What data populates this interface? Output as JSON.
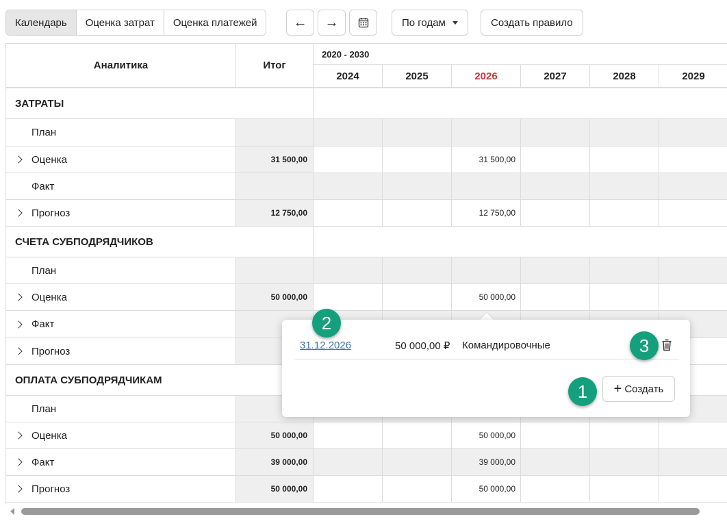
{
  "toolbar": {
    "tabs": [
      "Календарь",
      "Оценка затрат",
      "Оценка платежей"
    ],
    "nav_prev_icon": "←",
    "nav_next_icon": "→",
    "calendar_icon": "calendar-icon",
    "period_select": "По годам",
    "create_rule": "Создать правило"
  },
  "grid": {
    "col_analytics": "Аналитика",
    "col_total": "Итог",
    "period_range": "2020 - 2030",
    "years": [
      "2024",
      "2025",
      "2026",
      "2027",
      "2028",
      "2029"
    ],
    "current_year": "2026",
    "rows": [
      {
        "type": "section",
        "label": "ЗАТРАТЫ"
      },
      {
        "type": "row",
        "label": "План",
        "gray": true
      },
      {
        "type": "row",
        "label": "Оценка",
        "expandable": true,
        "total": "31 500,00",
        "y2026": "31 500,00"
      },
      {
        "type": "row",
        "label": "Факт",
        "gray": true
      },
      {
        "type": "row",
        "label": "Прогноз",
        "expandable": true,
        "total": "12 750,00",
        "y2026": "12 750,00"
      },
      {
        "type": "section",
        "label": "СЧЕТА СУБПОДРЯДЧИКОВ"
      },
      {
        "type": "row",
        "label": "План",
        "gray": true
      },
      {
        "type": "row",
        "label": "Оценка",
        "expandable": true,
        "total": "50 000,00",
        "y2026": "50 000,00"
      },
      {
        "type": "row",
        "label": "Факт",
        "expandable": true,
        "gray": true,
        "total": "39"
      },
      {
        "type": "row",
        "label": "Прогноз",
        "expandable": true,
        "total": "50"
      },
      {
        "type": "section",
        "label": "ОПЛАТА СУБПОДРЯДЧИКАМ"
      },
      {
        "type": "row",
        "label": "План",
        "gray": true
      },
      {
        "type": "row",
        "label": "Оценка",
        "expandable": true,
        "total": "50 000,00",
        "y2026": "50 000,00"
      },
      {
        "type": "row",
        "label": "Факт",
        "expandable": true,
        "gray": true,
        "total": "39 000,00",
        "y2026": "39 000,00"
      },
      {
        "type": "row",
        "label": "Прогноз",
        "expandable": true,
        "total": "50 000,00",
        "y2026": "50 000,00"
      }
    ]
  },
  "popover": {
    "date": "31.12.2026",
    "amount": "50 000,00 ₽",
    "category": "Командировочные",
    "create_label": "Создать",
    "create_icon": "+"
  },
  "badges": [
    "1",
    "2",
    "3"
  ],
  "colors": {
    "current_year": "#c8393b",
    "badge": "#14a07c",
    "link": "#3a78b5",
    "gray_cell": "#efefef"
  }
}
